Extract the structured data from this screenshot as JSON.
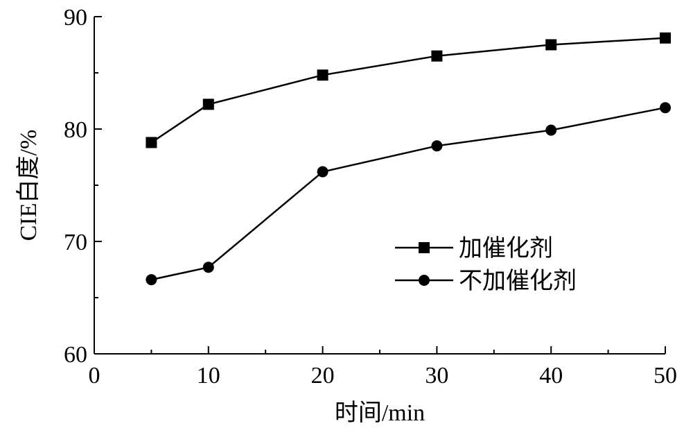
{
  "chart_data": {
    "type": "line",
    "title": "",
    "xlabel": "时间/min",
    "ylabel": "CIE白度/%",
    "xlim": [
      0,
      50
    ],
    "ylim": [
      60,
      90
    ],
    "x_major_ticks": [
      0,
      10,
      20,
      30,
      40,
      50
    ],
    "x_minor_ticks": [
      5,
      15,
      25,
      35,
      45
    ],
    "y_major_ticks": [
      60,
      70,
      80,
      90
    ],
    "y_minor_ticks": [
      65,
      75,
      85
    ],
    "x_tick_labels": [
      "0",
      "10",
      "20",
      "30",
      "40",
      "50"
    ],
    "y_tick_labels": [
      "60",
      "70",
      "80",
      "90"
    ],
    "grid": false,
    "legend_position": "center-right",
    "x": [
      5,
      10,
      20,
      30,
      40,
      50
    ],
    "series": [
      {
        "name": "加催化剂",
        "marker": "square",
        "color": "#000000",
        "values": [
          78.8,
          82.2,
          84.8,
          86.5,
          87.5,
          88.1
        ]
      },
      {
        "name": "不加催化剂",
        "marker": "circle",
        "color": "#000000",
        "values": [
          66.6,
          67.7,
          76.2,
          78.5,
          79.9,
          81.9
        ]
      }
    ]
  }
}
